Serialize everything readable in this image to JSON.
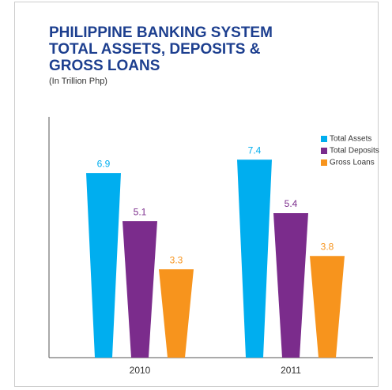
{
  "chart_data": {
    "type": "bar",
    "title": [
      "PHILIPPINE BANKING SYSTEM",
      "TOTAL ASSETS, DEPOSITS &",
      "GROSS LOANS"
    ],
    "subtitle": "(In Trillion Php)",
    "categories": [
      "2010",
      "2011"
    ],
    "series": [
      {
        "name": "Total Assets",
        "color": "#00aeef",
        "values": [
          6.9,
          7.4
        ]
      },
      {
        "name": "Total Deposits",
        "color": "#7b2c8c",
        "values": [
          5.1,
          5.4
        ]
      },
      {
        "name": "Gross Loans",
        "color": "#f7941d",
        "values": [
          3.3,
          3.8
        ]
      }
    ],
    "ylim": [
      0,
      9
    ],
    "legend": "top-right"
  }
}
